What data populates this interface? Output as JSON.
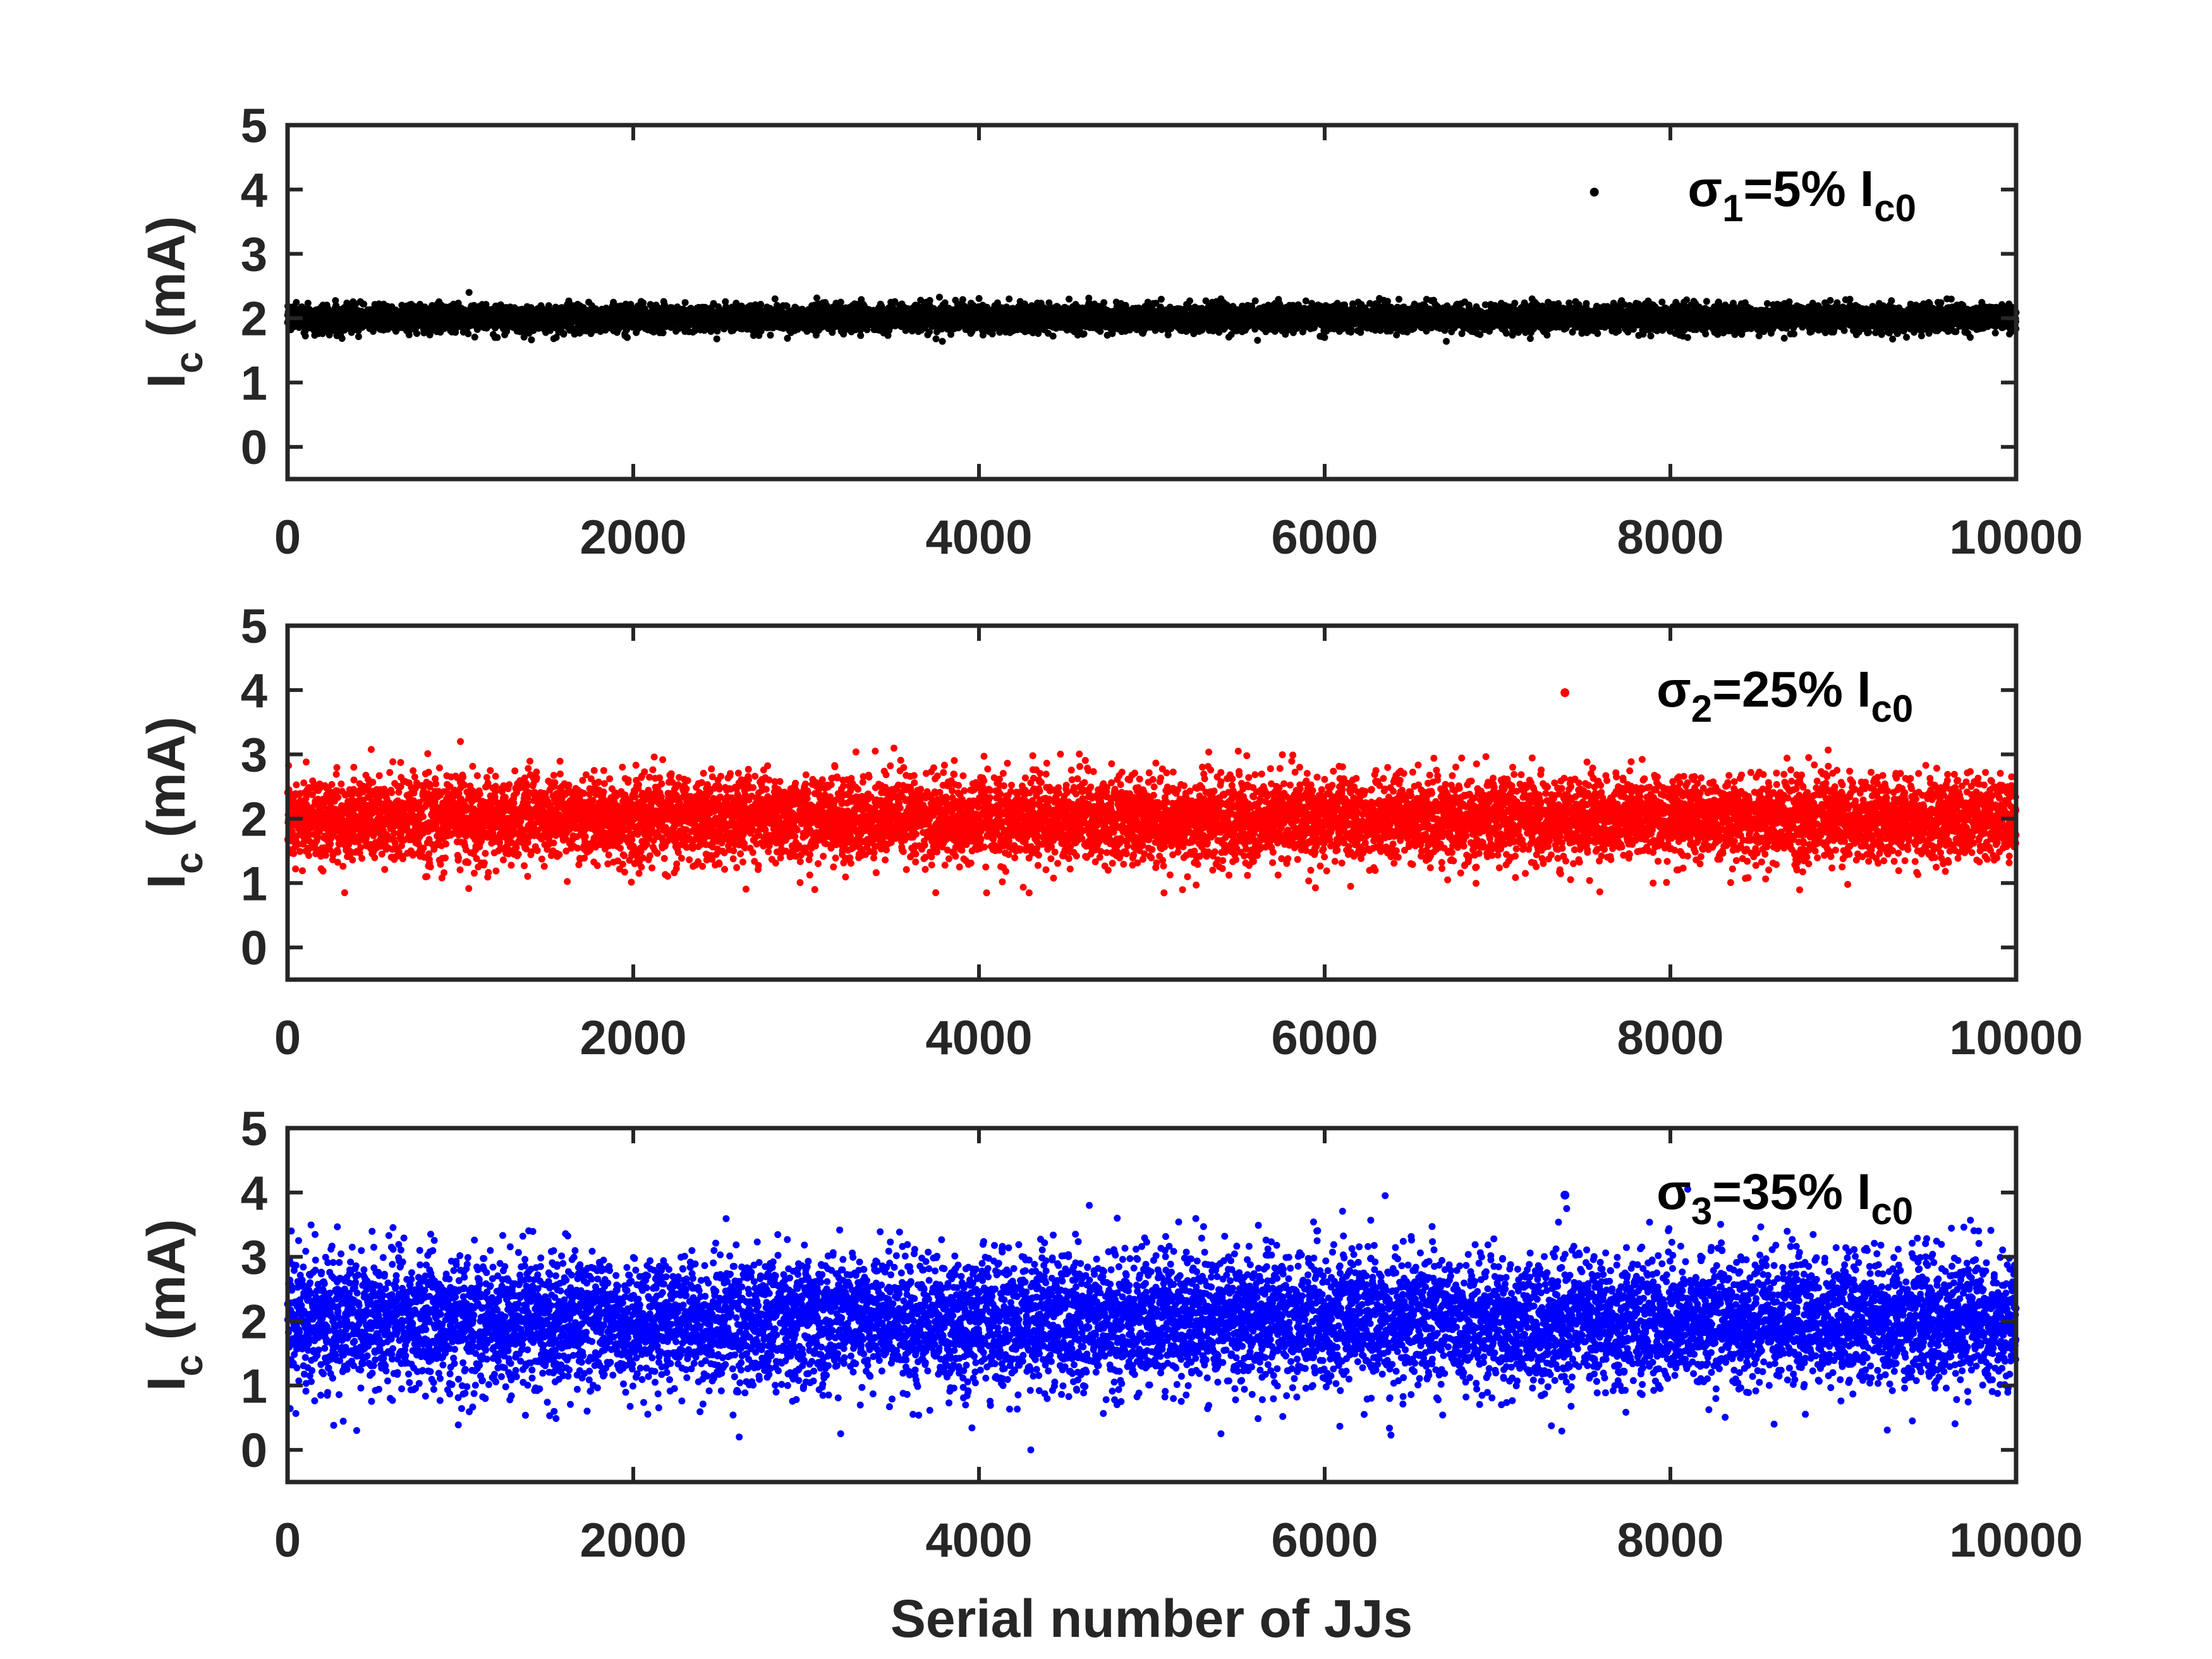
{
  "chart_data": [
    {
      "type": "scatter",
      "ylabel": "I",
      "ylabel_sub": "c",
      "ylabel_rest": " (mA)",
      "xlabel": "",
      "xlim": [
        0,
        10000
      ],
      "ylim": [
        -0.5,
        5
      ],
      "xticks": [
        "0",
        "2000",
        "4000",
        "6000",
        "8000",
        "10000"
      ],
      "yticks": [
        "0",
        "1",
        "2",
        "3",
        "4",
        "5"
      ],
      "grid": false,
      "legend_position": "top-right",
      "series": [
        {
          "name_parts": [
            "σ",
            "1",
            "=5% I",
            "c0"
          ],
          "color": "#000000",
          "mean": 2.0,
          "spread": 0.1,
          "count": 10000,
          "sample_points": [
            [
              1050,
              2.4
            ],
            [
              2820,
              2.3
            ],
            [
              5400,
              2.3
            ],
            [
              7200,
              2.3
            ],
            [
              9600,
              2.3
            ],
            [
              8100,
              1.7
            ],
            [
              1200,
              1.7
            ],
            [
              6000,
              1.7
            ]
          ]
        }
      ]
    },
    {
      "type": "scatter",
      "ylabel": "I",
      "ylabel_sub": "c",
      "ylabel_rest": " (mA)",
      "xlabel": "",
      "xlim": [
        0,
        10000
      ],
      "ylim": [
        -0.5,
        5
      ],
      "xticks": [
        "0",
        "2000",
        "4000",
        "6000",
        "8000",
        "10000"
      ],
      "yticks": [
        "0",
        "1",
        "2",
        "3",
        "4",
        "5"
      ],
      "grid": false,
      "legend_position": "top-right",
      "series": [
        {
          "name_parts": [
            "σ",
            "2",
            "=25% I",
            "c0"
          ],
          "color": "#ff0000",
          "mean": 2.0,
          "spread": 0.32,
          "count": 10000,
          "sample_points": [
            [
              1000,
              3.2
            ],
            [
              3400,
              3.05
            ],
            [
              5500,
              3.05
            ],
            [
              8800,
              2.95
            ],
            [
              330,
              0.85
            ],
            [
              3050,
              0.9
            ],
            [
              3750,
              0.85
            ],
            [
              6150,
              0.95
            ],
            [
              7900,
              1.0
            ]
          ]
        }
      ]
    },
    {
      "type": "scatter",
      "ylabel": "I",
      "ylabel_sub": "c",
      "ylabel_rest": " (mA)",
      "xlabel": "Serial number of JJs",
      "xlim": [
        0,
        10000
      ],
      "ylim": [
        -0.5,
        5
      ],
      "xticks": [
        "0",
        "2000",
        "4000",
        "6000",
        "8000",
        "10000"
      ],
      "yticks": [
        "0",
        "1",
        "2",
        "3",
        "4",
        "5"
      ],
      "grid": false,
      "legend_position": "top-right",
      "series": [
        {
          "name_parts": [
            "σ",
            "3",
            "=35% I",
            "c0"
          ],
          "color": "#0000ff",
          "mean": 2.0,
          "spread": 0.5,
          "count": 10000,
          "sample_points": [
            [
              6350,
              3.95
            ],
            [
              4800,
              3.6
            ],
            [
              7400,
              3.75
            ],
            [
              8100,
              4.05
            ],
            [
              4300,
              0.0
            ],
            [
              3200,
              0.25
            ],
            [
              5400,
              0.25
            ],
            [
              400,
              0.3
            ],
            [
              8600,
              0.4
            ],
            [
              9400,
              0.45
            ]
          ]
        }
      ]
    }
  ]
}
